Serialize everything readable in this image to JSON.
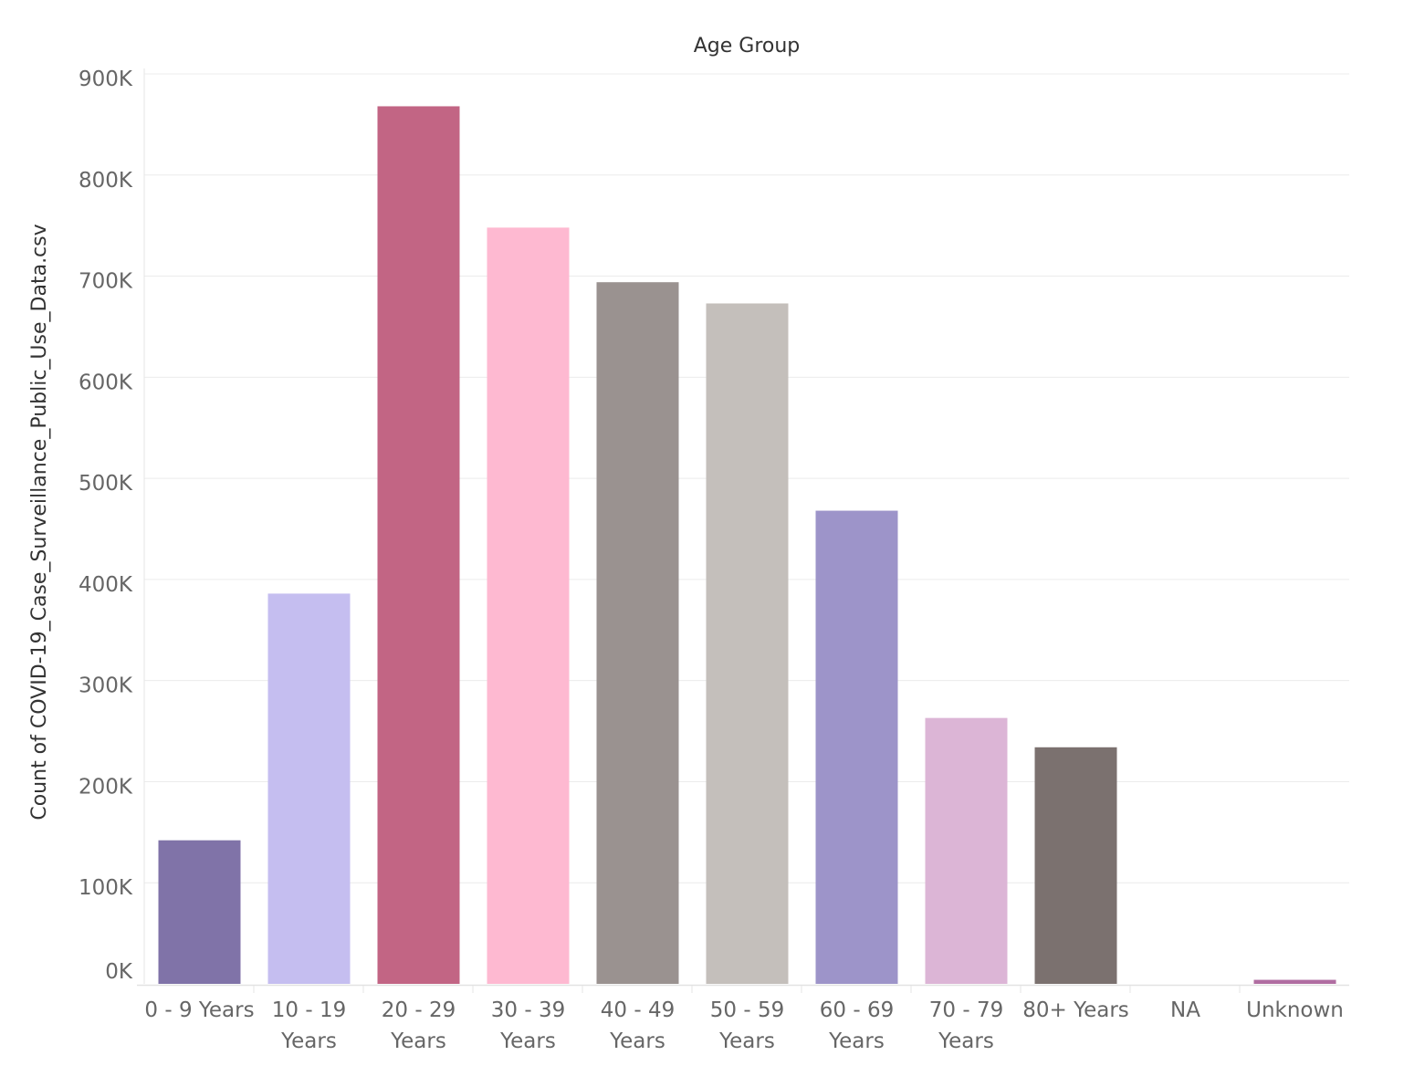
{
  "chart_data": {
    "type": "bar",
    "title": "Age Group",
    "xlabel": "",
    "ylabel": "Count of COVID-19_Case_Surveillance_Public_Use_Data.csv",
    "categories": [
      [
        "0 - 9 Years"
      ],
      [
        "10 - 19",
        "Years"
      ],
      [
        "20 - 29",
        "Years"
      ],
      [
        "30 - 39",
        "Years"
      ],
      [
        "40 - 49",
        "Years"
      ],
      [
        "50 - 59",
        "Years"
      ],
      [
        "60 - 69",
        "Years"
      ],
      [
        "70 - 79",
        "Years"
      ],
      [
        "80+ Years"
      ],
      [
        "NA"
      ],
      [
        "Unknown"
      ]
    ],
    "values": [
      142000,
      386000,
      868000,
      748000,
      694000,
      673000,
      468000,
      263000,
      234000,
      0,
      4000
    ],
    "colors": [
      "#8073a8",
      "#c5bef0",
      "#c26584",
      "#feb9d1",
      "#9a9290",
      "#c4bfbb",
      "#9d94c9",
      "#dcb5d6",
      "#7b716f",
      "#ffffff",
      "#b06da1"
    ],
    "ylim": [
      0,
      900000
    ],
    "yticks": [
      0,
      100000,
      200000,
      300000,
      400000,
      500000,
      600000,
      700000,
      800000,
      900000
    ],
    "ytick_labels": [
      "0K",
      "100K",
      "200K",
      "300K",
      "400K",
      "500K",
      "600K",
      "700K",
      "800K",
      "900K"
    ],
    "grid": true,
    "legend": "none"
  }
}
